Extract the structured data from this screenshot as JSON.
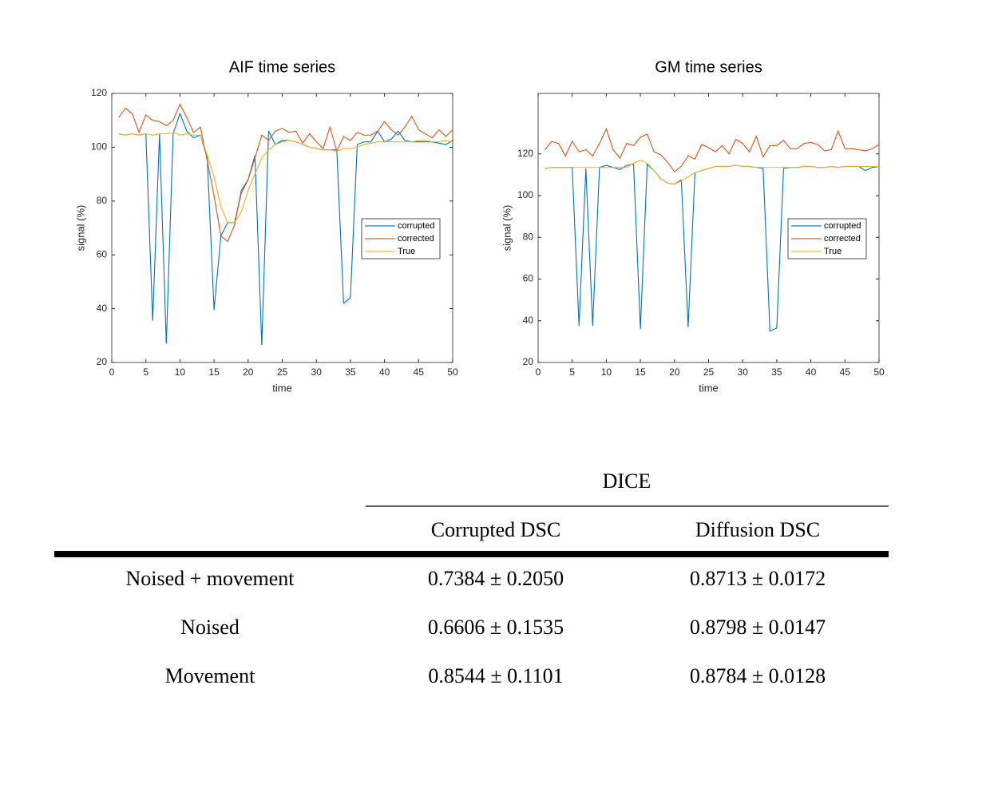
{
  "chart_data": [
    {
      "type": "line",
      "title": "AIF time series",
      "xlabel": "time",
      "ylabel": "signal (%)",
      "x": [
        1,
        2,
        3,
        4,
        5,
        6,
        7,
        8,
        9,
        10,
        11,
        12,
        13,
        14,
        15,
        16,
        17,
        18,
        19,
        20,
        21,
        22,
        23,
        24,
        25,
        26,
        27,
        28,
        29,
        30,
        31,
        32,
        33,
        34,
        35,
        36,
        37,
        38,
        39,
        40,
        41,
        42,
        43,
        44,
        45,
        46,
        47,
        48,
        49,
        50
      ],
      "xlim": [
        0,
        50
      ],
      "xticks": [
        0,
        5,
        10,
        15,
        20,
        25,
        30,
        35,
        40,
        45,
        50
      ],
      "ylim": [
        20,
        120
      ],
      "yticks": [
        20,
        40,
        60,
        80,
        100,
        120
      ],
      "legend": "east",
      "series": [
        {
          "name": "corrupted",
          "color": "#0072BD",
          "values": [
            105,
            104.5,
            105,
            104.5,
            105,
            35.5,
            105,
            27,
            105,
            112.5,
            106,
            103.5,
            104.5,
            96,
            39.5,
            67,
            72,
            72,
            83,
            88,
            97,
            26.5,
            106,
            101,
            102.5,
            102.5,
            102,
            101,
            100,
            99.5,
            99,
            99,
            99,
            42,
            44,
            101,
            102,
            102,
            106,
            102,
            103,
            106,
            102.5,
            102,
            102,
            102,
            102,
            101.5,
            101,
            102.5
          ]
        },
        {
          "name": "corrected",
          "color": "#D95319",
          "values": [
            111,
            114.5,
            112.5,
            105.5,
            112,
            110,
            109.5,
            108,
            110,
            116,
            111,
            105.5,
            107.5,
            95,
            82,
            67,
            65,
            71,
            84,
            88,
            96,
            104.5,
            102.5,
            106,
            107,
            105.5,
            106,
            101.5,
            105,
            102,
            99.5,
            107.5,
            98.5,
            104,
            102.5,
            105.5,
            104.5,
            104.5,
            106,
            109.5,
            106.5,
            104.5,
            107.5,
            111.5,
            106.5,
            105,
            103.5,
            106.5,
            104,
            106.5
          ]
        },
        {
          "name": "True",
          "color": "#EDB120",
          "values": [
            105,
            104.5,
            105,
            104.5,
            105,
            104.5,
            105,
            105,
            105.5,
            104.5,
            105,
            104.5,
            104.5,
            97,
            89,
            78,
            72,
            72,
            76,
            84,
            90,
            96,
            99,
            101,
            102,
            102.5,
            102,
            101,
            100,
            99.5,
            99,
            99,
            98.5,
            99.5,
            99.5,
            100,
            101,
            101.5,
            102,
            102,
            102,
            102,
            102,
            102,
            102.5,
            102.5,
            102,
            102,
            102.5,
            102
          ]
        }
      ]
    },
    {
      "type": "line",
      "title": "GM time series",
      "xlabel": "time",
      "ylabel": "signal (%)",
      "x": [
        1,
        2,
        3,
        4,
        5,
        6,
        7,
        8,
        9,
        10,
        11,
        12,
        13,
        14,
        15,
        16,
        17,
        18,
        19,
        20,
        21,
        22,
        23,
        24,
        25,
        26,
        27,
        28,
        29,
        30,
        31,
        32,
        33,
        34,
        35,
        36,
        37,
        38,
        39,
        40,
        41,
        42,
        43,
        44,
        45,
        46,
        47,
        48,
        49,
        50
      ],
      "xlim": [
        0,
        50
      ],
      "xticks": [
        0,
        5,
        10,
        15,
        20,
        25,
        30,
        35,
        40,
        45,
        50
      ],
      "ylim": [
        20,
        149
      ],
      "yticks": [
        20,
        40,
        60,
        80,
        100,
        120
      ],
      "legend": "east",
      "series": [
        {
          "name": "corrupted",
          "color": "#0072BD",
          "values": [
            113,
            113.5,
            113.5,
            113.5,
            113.5,
            37.5,
            113,
            37.5,
            113.5,
            114.5,
            113.5,
            112.5,
            114.5,
            115,
            36,
            115,
            112,
            108,
            106,
            105.5,
            107.5,
            37,
            111,
            112,
            113,
            114,
            114,
            114,
            114.5,
            114,
            114,
            113.5,
            113,
            35,
            36.5,
            113,
            113.5,
            113.5,
            114,
            114,
            113.5,
            113.5,
            114,
            113.5,
            114,
            114,
            114,
            112,
            113.5,
            114
          ]
        },
        {
          "name": "corrected",
          "color": "#D95319",
          "values": [
            122,
            126,
            125,
            119,
            126,
            121,
            122,
            119,
            125,
            132,
            122,
            118,
            125,
            124,
            128,
            129.5,
            121,
            119.5,
            116,
            111.5,
            114,
            119,
            117.5,
            124.5,
            123,
            121,
            124,
            120,
            127,
            125,
            121,
            128.5,
            118.5,
            124,
            124,
            126.5,
            122.5,
            122.5,
            125,
            125.5,
            124.5,
            121.5,
            122,
            131,
            122.5,
            122.5,
            122,
            121.5,
            122.5,
            124.5
          ]
        },
        {
          "name": "True",
          "color": "#EDB120",
          "values": [
            113,
            113.5,
            113.5,
            113.5,
            113.5,
            113.5,
            113.5,
            113.5,
            113.5,
            113.5,
            113.5,
            113.5,
            113.5,
            115.5,
            117,
            115.5,
            112,
            108,
            106,
            105.5,
            107,
            109,
            111,
            112,
            113,
            114,
            114,
            114,
            114.5,
            114,
            114,
            113.5,
            113.5,
            113.5,
            113.5,
            113.5,
            113.5,
            113.5,
            114,
            114,
            113.5,
            113.5,
            114,
            113.5,
            114,
            114,
            114,
            114,
            114,
            114
          ]
        }
      ]
    }
  ],
  "table": {
    "header": "DICE",
    "columns": [
      "Corrupted DSC",
      "Diffusion DSC"
    ],
    "rows": [
      [
        "Noised + movement",
        "0.7384 ± 0.2050",
        "0.8713 ± 0.0172"
      ],
      [
        "Noised",
        "0.6606 ± 0.1535",
        "0.8798 ± 0.0147"
      ],
      [
        "Movement",
        "0.8544 ± 0.1101",
        "0.8784 ± 0.0128"
      ]
    ]
  }
}
